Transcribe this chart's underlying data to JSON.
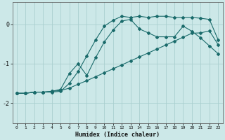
{
  "xlabel": "Humidex (Indice chaleur)",
  "ylabel": "",
  "background_color": "#cce8e8",
  "line_color": "#1a6b6b",
  "grid_color": "#aacfcf",
  "xlim": [
    -0.5,
    23.5
  ],
  "ylim": [
    -2.5,
    0.55
  ],
  "yticks": [
    0,
    -1,
    -2
  ],
  "xticks": [
    0,
    1,
    2,
    3,
    4,
    5,
    6,
    7,
    8,
    9,
    10,
    11,
    12,
    13,
    14,
    15,
    16,
    17,
    18,
    19,
    20,
    21,
    22,
    23
  ],
  "series1_x": [
    0,
    1,
    2,
    3,
    4,
    5,
    6,
    7,
    8,
    9,
    10,
    11,
    12,
    13,
    14,
    15,
    16,
    17,
    18,
    19,
    20,
    21,
    22,
    23
  ],
  "series1_y": [
    -1.75,
    -1.75,
    -1.72,
    -1.72,
    -1.72,
    -1.7,
    -1.5,
    -1.2,
    -0.8,
    -0.4,
    -0.05,
    0.1,
    0.2,
    0.17,
    0.2,
    0.17,
    0.2,
    0.2,
    0.17,
    0.17,
    0.17,
    0.15,
    0.12,
    -0.4
  ],
  "series2_x": [
    0,
    1,
    2,
    3,
    4,
    5,
    6,
    7,
    8,
    9,
    10,
    11,
    12,
    13,
    14,
    15,
    16,
    17,
    18,
    19,
    20,
    21,
    22,
    23
  ],
  "series2_y": [
    -1.75,
    -1.75,
    -1.72,
    -1.72,
    -1.7,
    -1.65,
    -1.25,
    -1.0,
    -1.3,
    -0.85,
    -0.45,
    -0.15,
    0.08,
    0.12,
    -0.12,
    -0.22,
    -0.32,
    -0.32,
    -0.32,
    -0.05,
    -0.18,
    -0.35,
    -0.55,
    -0.75
  ],
  "series3_x": [
    0,
    1,
    2,
    3,
    4,
    5,
    6,
    7,
    8,
    9,
    10,
    11,
    12,
    13,
    14,
    15,
    16,
    17,
    18,
    19,
    20,
    21,
    22,
    23
  ],
  "series3_y": [
    -1.75,
    -1.75,
    -1.72,
    -1.72,
    -1.7,
    -1.68,
    -1.62,
    -1.52,
    -1.43,
    -1.33,
    -1.23,
    -1.13,
    -1.03,
    -0.93,
    -0.83,
    -0.73,
    -0.63,
    -0.53,
    -0.43,
    -0.33,
    -0.23,
    -0.22,
    -0.17,
    -0.52
  ]
}
